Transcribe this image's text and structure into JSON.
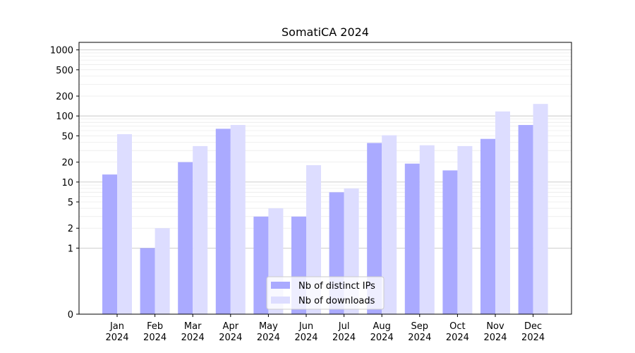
{
  "chart_data": {
    "type": "bar",
    "title": "SomatiCA 2024",
    "xlabel": "",
    "ylabel": "",
    "yscale": "symlog",
    "ylim": [
      0,
      1300
    ],
    "yticks": [
      0,
      1,
      2,
      5,
      10,
      20,
      50,
      100,
      200,
      500,
      1000
    ],
    "ytick_labels": [
      "0",
      "1",
      "2",
      "5",
      "10",
      "20",
      "50",
      "100",
      "200",
      "500",
      "1000"
    ],
    "categories": [
      "Jan\n2024",
      "Feb\n2024",
      "Mar\n2024",
      "Apr\n2024",
      "May\n2024",
      "Jun\n2024",
      "Jul\n2024",
      "Aug\n2024",
      "Sep\n2024",
      "Oct\n2024",
      "Nov\n2024",
      "Dec\n2024"
    ],
    "series": [
      {
        "name": "Nb of distinct IPs",
        "color": "#aaaaff",
        "values": [
          13,
          1,
          20,
          64,
          3,
          3,
          7,
          39,
          19,
          15,
          45,
          73
        ]
      },
      {
        "name": "Nb of downloads",
        "color": "#ddddff",
        "values": [
          53,
          2,
          35,
          73,
          4,
          18,
          8,
          51,
          36,
          35,
          117,
          152
        ]
      }
    ],
    "grid": true,
    "legend_position": "lower-center"
  }
}
